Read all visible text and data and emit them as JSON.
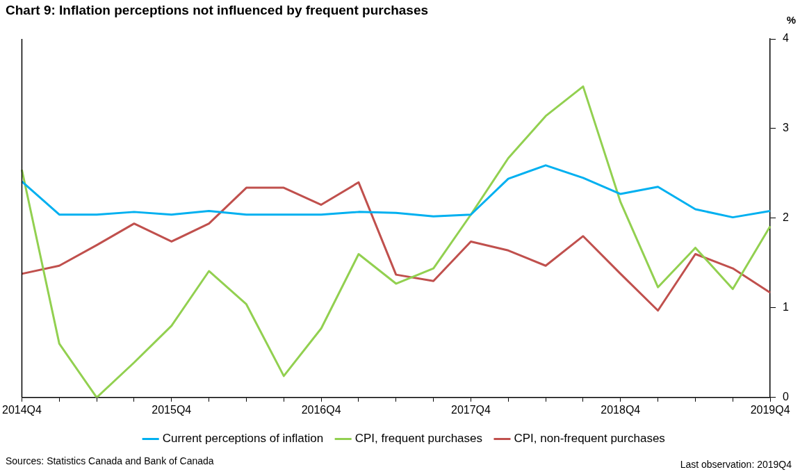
{
  "chart_data": {
    "type": "line",
    "title": "Chart 9: Inflation perceptions not influenced by frequent purchases",
    "ylabel": "%",
    "categories": [
      "2014Q4",
      null,
      null,
      null,
      "2015Q4",
      null,
      null,
      null,
      "2016Q4",
      null,
      null,
      null,
      "2017Q4",
      null,
      null,
      null,
      "2018Q4",
      null,
      null,
      null,
      "2019Q4"
    ],
    "series": [
      {
        "name": "Current perceptions of inflation",
        "color": "#00b0f0",
        "values": [
          2.41,
          2.04,
          2.04,
          2.07,
          2.04,
          2.08,
          2.04,
          2.04,
          2.04,
          2.07,
          2.06,
          2.02,
          2.04,
          2.44,
          2.59,
          2.45,
          2.27,
          2.35,
          2.1,
          2.01,
          2.08
        ]
      },
      {
        "name": "CPI, frequent purchases",
        "color": "#92d050",
        "values": [
          2.54,
          0.6,
          0,
          0.39,
          0.8,
          1.41,
          1.04,
          0.24,
          0.77,
          1.6,
          1.27,
          1.44,
          2.04,
          2.67,
          3.14,
          3.47,
          2.18,
          1.23,
          1.67,
          1.21,
          1.91
        ]
      },
      {
        "name": "CPI, non-frequent purchases",
        "color": "#c0504d",
        "values": [
          1.38,
          1.47,
          1.7,
          1.94,
          1.74,
          1.94,
          2.34,
          2.34,
          2.15,
          2.4,
          1.37,
          1.3,
          1.74,
          1.64,
          1.47,
          1.8,
          1.38,
          0.97,
          1.6,
          1.44,
          1.17
        ]
      }
    ],
    "ylim": [
      0,
      4
    ],
    "yticks": [
      0,
      1,
      2,
      3,
      4
    ],
    "grid": false,
    "legend": "bottom",
    "marker": "none",
    "annotations": [
      "Sources: Statistics Canada and Bank of Canada",
      "Last observation: 2019Q4"
    ]
  }
}
